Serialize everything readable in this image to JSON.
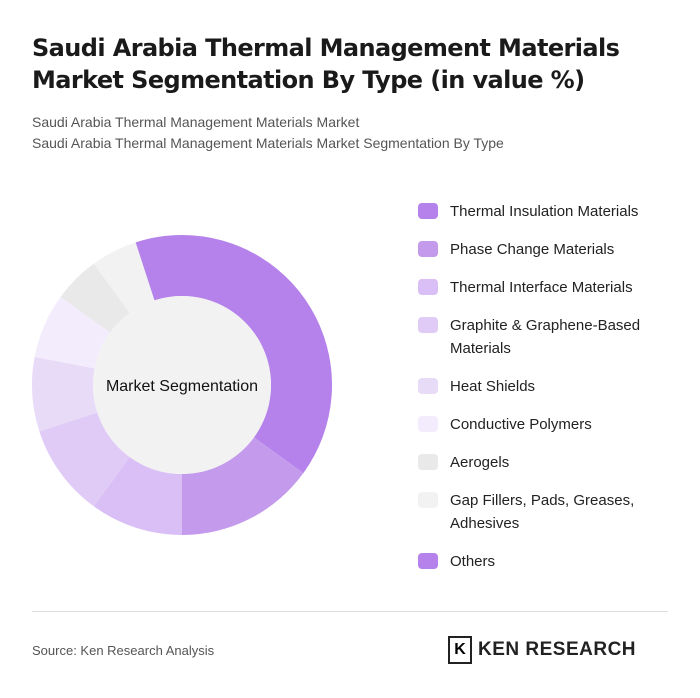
{
  "title": "Saudi Arabia Thermal Management Materials Market Segmentation By Type (in value %)",
  "subtitle1": "Saudi Arabia Thermal Management Materials Market",
  "subtitle2": "Saudi Arabia Thermal Management Materials Market Segmentation By Type",
  "source": "Source: Ken Research Analysis",
  "logo_text": "KEN RESEARCH",
  "chart_data": {
    "type": "pie",
    "variant": "donut",
    "center_label": "Market Segmentation",
    "legend_position": "right",
    "categories": [
      "Thermal Insulation Materials",
      "Phase Change Materials",
      "Thermal Interface Materials",
      "Graphite & Graphene-Based Materials",
      "Heat Shields",
      "Conductive Polymers",
      "Aerogels",
      "Gap Fillers, Pads, Greases, Adhesives",
      "Others"
    ],
    "values": [
      35,
      15,
      10,
      10,
      8,
      7,
      5,
      5,
      5
    ],
    "colors": [
      "#b482ea",
      "#c49bec",
      "#d9bff5",
      "#e0cbf6",
      "#e8dbf8",
      "#f3ecfc",
      "#e9e9e9",
      "#f2f2f2",
      "#b482ea"
    ]
  }
}
